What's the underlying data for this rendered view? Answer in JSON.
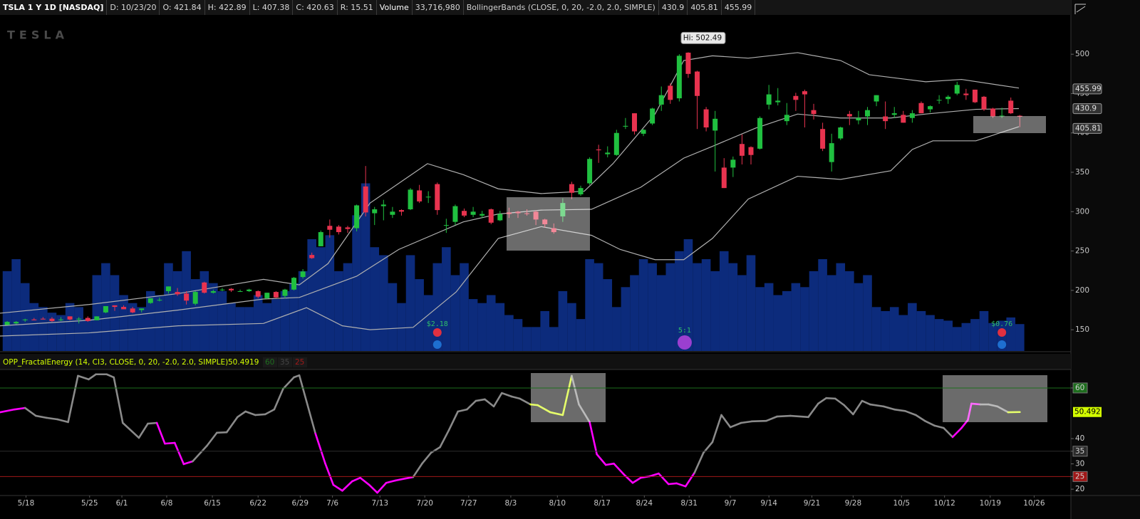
{
  "header": {
    "symbol": "TSLA 1 Y 1D [NASDAQ]",
    "fields": [
      "D: 10/23/20",
      "O: 421.84",
      "H: 422.89",
      "L: 407.38",
      "C: 420.63",
      "R: 15.51"
    ],
    "volume_label": "Volume",
    "volume": "33,716,980",
    "study": "BollingerBands (CLOSE, 0, 20, -2.0, 2.0, SIMPLE)",
    "study_values": [
      "430.9",
      "405.81",
      "455.99"
    ]
  },
  "logo": "TESLA",
  "price": {
    "type": "candlestick",
    "xlim": [
      -0.8,
      118.7
    ],
    "ylim": [
      123,
      549
    ],
    "yticks": [
      150,
      200,
      250,
      300,
      350,
      400,
      450,
      500
    ],
    "up_color": "#20c040",
    "down_color": "#e8334f",
    "volume_color": "#0c2b7c",
    "band_color": "#b0b0b0",
    "volume_lim": [
      0,
      420
    ],
    "candles": [
      [
        156,
        161,
        156,
        160
      ],
      [
        158,
        161,
        157,
        160
      ],
      [
        163,
        164,
        160,
        163
      ],
      [
        163,
        165,
        162,
        162
      ],
      [
        164,
        166,
        163,
        163
      ],
      [
        164,
        166,
        160,
        161
      ],
      [
        163,
        166,
        161,
        163
      ],
      [
        167,
        167,
        162,
        163
      ],
      [
        163,
        166,
        158,
        164
      ],
      [
        165,
        167,
        160,
        161
      ],
      [
        162,
        167,
        162,
        167
      ],
      [
        172,
        180,
        171,
        180
      ],
      [
        181,
        181,
        174,
        179
      ],
      [
        179,
        181,
        176,
        176
      ],
      [
        177,
        179,
        171,
        172
      ],
      [
        175,
        177,
        172,
        177
      ],
      [
        184,
        190,
        183,
        190
      ],
      [
        188,
        191,
        186,
        188
      ],
      [
        199,
        205,
        196,
        205
      ],
      [
        198,
        203,
        193,
        195
      ],
      [
        196,
        199,
        182,
        187
      ],
      [
        183,
        199,
        181,
        198
      ],
      [
        210,
        211,
        196,
        197
      ],
      [
        197,
        201,
        196,
        199
      ],
      [
        201,
        203,
        199,
        201
      ],
      [
        202,
        203,
        198,
        200
      ],
      [
        199,
        201,
        198,
        199
      ],
      [
        199,
        202,
        198,
        201
      ],
      [
        199,
        200,
        190,
        192
      ],
      [
        190,
        197,
        189,
        197
      ],
      [
        198,
        199,
        190,
        191
      ],
      [
        193,
        202,
        190,
        201
      ],
      [
        201,
        217,
        200,
        216
      ],
      [
        217,
        227,
        215,
        224
      ],
      [
        245,
        248,
        240,
        241
      ],
      [
        256,
        276,
        256,
        274
      ],
      [
        282,
        290,
        267,
        277
      ],
      [
        281,
        283,
        271,
        274
      ],
      [
        280,
        282,
        273,
        278
      ],
      [
        279,
        309,
        275,
        308
      ],
      [
        332,
        358,
        294,
        299
      ],
      [
        298,
        306,
        283,
        303
      ],
      [
        307,
        315,
        289,
        309
      ],
      [
        296,
        306,
        292,
        300
      ],
      [
        302,
        303,
        295,
        300
      ],
      [
        303,
        330,
        302,
        328
      ],
      [
        327,
        334,
        311,
        313
      ],
      [
        319,
        326,
        311,
        319
      ],
      [
        335,
        337,
        296,
        302
      ],
      [
        283,
        291,
        273,
        283
      ],
      [
        287,
        309,
        283,
        307
      ],
      [
        301,
        304,
        293,
        295
      ],
      [
        296,
        306,
        293,
        300
      ],
      [
        295,
        301,
        292,
        297
      ],
      [
        303,
        304,
        284,
        286
      ],
      [
        289,
        301,
        288,
        297
      ],
      [
        299,
        305,
        292,
        297
      ],
      [
        300,
        301,
        292,
        298
      ],
      [
        298,
        303,
        295,
        297
      ],
      [
        300,
        302,
        283,
        290
      ],
      [
        290,
        291,
        280,
        284
      ],
      [
        279,
        285,
        272,
        274
      ],
      [
        294,
        317,
        287,
        311
      ],
      [
        335,
        338,
        316,
        324
      ],
      [
        322,
        333,
        320,
        330
      ],
      [
        336,
        369,
        334,
        367
      ],
      [
        379,
        385,
        362,
        378
      ],
      [
        373,
        383,
        369,
        375
      ],
      [
        372,
        404,
        371,
        400
      ],
      [
        408,
        419,
        405,
        409
      ],
      [
        425,
        425,
        398,
        402
      ],
      [
        399,
        405,
        396,
        404
      ],
      [
        412,
        432,
        410,
        431
      ],
      [
        436,
        459,
        428,
        448
      ],
      [
        460,
        463,
        437,
        442
      ],
      [
        444,
        500,
        440,
        498
      ],
      [
        502,
        502.49,
        470,
        475
      ],
      [
        478,
        479,
        405,
        447
      ],
      [
        430,
        433,
        402,
        407
      ],
      [
        403,
        428,
        351,
        418
      ],
      [
        356,
        368,
        330,
        330
      ],
      [
        356,
        370,
        344,
        366
      ],
      [
        386,
        398,
        360,
        371
      ],
      [
        382,
        383,
        360,
        372
      ],
      [
        380,
        421,
        379,
        419
      ],
      [
        436,
        461,
        430,
        449
      ],
      [
        439,
        457,
        435,
        441
      ],
      [
        415,
        438,
        410,
        423
      ],
      [
        447,
        451,
        428,
        442
      ],
      [
        453,
        455,
        407,
        449
      ],
      [
        429,
        437,
        417,
        424
      ],
      [
        405,
        413,
        377,
        380
      ],
      [
        363,
        399,
        351,
        387
      ],
      [
        393,
        408,
        391,
        407
      ],
      [
        424,
        428,
        410,
        421
      ],
      [
        416,
        428,
        411,
        419
      ],
      [
        421,
        433,
        410,
        429
      ],
      [
        440,
        448,
        434,
        448
      ],
      [
        421,
        440,
        405,
        415
      ],
      [
        423,
        433,
        419,
        425
      ],
      [
        423,
        428,
        413,
        413
      ],
      [
        419,
        429,
        413,
        425
      ],
      [
        438,
        440,
        425,
        425
      ],
      [
        430,
        435,
        426,
        434
      ],
      [
        442,
        448,
        437,
        442
      ],
      [
        443,
        448,
        437,
        446
      ],
      [
        450,
        465,
        448,
        461
      ],
      [
        450,
        456,
        442,
        448
      ],
      [
        455,
        455,
        438,
        439
      ],
      [
        446,
        447,
        428,
        430
      ],
      [
        431,
        432,
        419,
        421
      ],
      [
        422,
        432,
        419,
        422
      ],
      [
        441,
        445,
        424,
        425
      ],
      [
        421.84,
        422.89,
        407.38,
        420.63
      ]
    ],
    "volume": [
      100,
      115,
      85,
      60,
      55,
      48,
      45,
      60,
      55,
      40,
      95,
      110,
      95,
      70,
      60,
      55,
      75,
      70,
      110,
      100,
      125,
      90,
      100,
      85,
      75,
      60,
      55,
      55,
      70,
      60,
      65,
      75,
      85,
      100,
      140,
      130,
      145,
      100,
      110,
      170,
      210,
      130,
      120,
      85,
      60,
      120,
      90,
      70,
      110,
      130,
      95,
      110,
      65,
      60,
      70,
      60,
      45,
      40,
      30,
      30,
      50,
      30,
      75,
      60,
      40,
      115,
      110,
      90,
      55,
      80,
      95,
      115,
      110,
      95,
      110,
      125,
      140,
      110,
      115,
      100,
      125,
      110,
      95,
      120,
      80,
      85,
      70,
      75,
      85,
      80,
      100,
      115,
      95,
      110,
      100,
      85,
      95,
      55,
      50,
      55,
      45,
      60,
      50,
      45,
      40,
      38,
      30,
      35,
      40,
      50,
      35,
      38,
      42,
      33.7
    ],
    "bollinger": {
      "upper": {
        "x": [
          -0.8,
          9.1,
          19.1,
          28.6,
          32.6,
          35.8,
          40.5,
          46.9,
          50.9,
          54.8,
          59.6,
          64.4,
          67.6,
          72.3,
          75.5,
          78.7,
          82.7,
          88.2,
          93,
          96.2,
          102.5,
          106.5,
          112.9
        ],
        "values": [
          171,
          182,
          196,
          214,
          207,
          234,
          311,
          361,
          347,
          329,
          323,
          326,
          361,
          424,
          492,
          498,
          495,
          502,
          492,
          474,
          465,
          468,
          457
        ]
      },
      "middle": {
        "x": [
          -0.8,
          9.1,
          19.1,
          28.6,
          32.6,
          39,
          43.7,
          50.9,
          54.8,
          59.6,
          65.2,
          70.7,
          75.5,
          78.7,
          83.5,
          88.2,
          93,
          98.6,
          102.5,
          108.1,
          112.9
        ],
        "values": [
          155,
          162,
          175,
          189,
          191,
          218,
          252,
          287,
          297,
          302,
          303,
          331,
          368,
          383,
          406,
          424,
          419,
          419,
          424,
          430,
          431
        ]
      },
      "lower": {
        "x": [
          -0.8,
          9.1,
          19.1,
          28.6,
          33.4,
          37.4,
          40.5,
          45.3,
          50.1,
          54.8,
          59.6,
          65.2,
          68.4,
          72.3,
          75.5,
          78.7,
          82.7,
          88.2,
          93,
          98.6,
          101,
          103.3,
          108.1,
          112.9
        ],
        "values": [
          142,
          146,
          155,
          158,
          178,
          155,
          150,
          153,
          198,
          266,
          281,
          270,
          252,
          239,
          239,
          266,
          316,
          345,
          341,
          352,
          379,
          390,
          390,
          408
        ]
      }
    },
    "axis_labels": [
      {
        "value": 455.99,
        "label": "455.99"
      },
      {
        "value": 430.9,
        "label": "430.9"
      },
      {
        "value": 405.81,
        "label": "405.81"
      }
    ],
    "hi_label": {
      "index": 76,
      "value": 502.49,
      "label": "Hi: 502.49"
    },
    "events": [
      {
        "index": 48,
        "label": "$2.18"
      },
      {
        "index": 75.6,
        "label": "5:1"
      },
      {
        "index": 111,
        "label": "$0.76"
      }
    ]
  },
  "indicator": {
    "type": "line",
    "title": "OPP_FractalEnergy (14, CI3, CLOSE, 0, 20, -2.0, 2.0, SIMPLE)",
    "current": {
      "value": 50.4919,
      "label": "50.492"
    },
    "levels": [
      {
        "value": 60,
        "color": "#1e6e1e"
      },
      {
        "value": 35,
        "color": "#2c2c2c"
      },
      {
        "value": 25,
        "color": "#a01818"
      }
    ],
    "ylim": [
      17.5,
      67.3
    ],
    "yticks": [
      60,
      40,
      35,
      30,
      25,
      20
    ],
    "color": "#8a8a8a",
    "color_runs": [
      [
        0,
        1,
        "#ff00ff"
      ],
      [
        15,
        18,
        "#ff00ff"
      ],
      [
        31,
        41,
        "#ff00ff"
      ],
      [
        55,
        58,
        "#d4ff00"
      ],
      [
        61,
        72,
        "#ff00ff"
      ],
      [
        98,
        101,
        "#ff00ff"
      ],
      [
        105,
        105,
        "#d4ff00"
      ]
    ],
    "x": [
      -0.8,
      0.8,
      2.0,
      3.2,
      4.4,
      5.6,
      6.8,
      7.9,
      9.1,
      9.9,
      11.1,
      11.9,
      12.9,
      14.7,
      15.7,
      16.7,
      17.6,
      18.7,
      19.7,
      20.7,
      22.3,
      23.4,
      24.5,
      25.7,
      26.6,
      27.7,
      28.8,
      29.8,
      30.8,
      32.0,
      32.6,
      34.4,
      35.5,
      36.4,
      37.4,
      38.5,
      39.4,
      40.4,
      41.3,
      42.3,
      43.3,
      44.4,
      45.3,
      46.3,
      47.3,
      48.3,
      49.3,
      50.3,
      51.3,
      52.3,
      53.3,
      54.3,
      55.2,
      56.3,
      57.2,
      58.4,
      59.2,
      60.6,
      62.0,
      63.0,
      63.8,
      65.0,
      65.8,
      66.8,
      67.7,
      68.8,
      69.8,
      70.7,
      71.7,
      72.7,
      73.8,
      74.7,
      75.7,
      76.7,
      77.7,
      78.7,
      79.7,
      80.7,
      81.9,
      83.1,
      84.7,
      85.9,
      87.4,
      89.4,
      90.5,
      91.4,
      92.4,
      93.4,
      94.4,
      95.4,
      96.3,
      97.8,
      99.0,
      100.2,
      101.4,
      102.4,
      103.5,
      104.5,
      105.5,
      106.5,
      107.2,
      107.6,
      108.6,
      109.5,
      110.5,
      111.7,
      113.0
    ],
    "values": [
      50.4,
      51.5,
      52.1,
      49,
      48.2,
      47.6,
      46.5,
      64.8,
      63.4,
      65.4,
      65.4,
      64.2,
      46.2,
      40.3,
      45.9,
      46.2,
      38,
      38.3,
      29.9,
      31,
      37.2,
      42.3,
      42.5,
      48.5,
      50.7,
      49.3,
      49.6,
      51.5,
      59.7,
      64.2,
      65,
      42,
      30.1,
      21.7,
      19.4,
      23.1,
      24.5,
      21.7,
      18.6,
      22.5,
      23.4,
      24.2,
      24.8,
      30.1,
      34.4,
      36.6,
      43.4,
      50.7,
      51.5,
      54.9,
      55.5,
      52.7,
      58,
      56.6,
      55.8,
      53.5,
      53.2,
      50.4,
      49.3,
      64.8,
      53.5,
      46.5,
      33.8,
      29.6,
      30.1,
      25.9,
      22.5,
      24.5,
      25.1,
      26.2,
      22,
      22.3,
      21.1,
      26.5,
      34.4,
      38.6,
      49.3,
      44.5,
      46.2,
      46.8,
      47,
      48.7,
      49,
      48.5,
      53.8,
      56,
      55.8,
      53.2,
      49.6,
      54.9,
      53.5,
      52.7,
      51.5,
      50.9,
      49.3,
      47,
      45.1,
      44.2,
      40.6,
      44.2,
      47.3,
      53.8,
      53.5,
      53.5,
      52.7,
      50.4,
      50.49
    ]
  },
  "xticks": [
    {
      "value": 2.1,
      "label": "5/18"
    },
    {
      "value": 9.2,
      "label": "5/25"
    },
    {
      "value": 12.8,
      "label": "6/1"
    },
    {
      "value": 17.8,
      "label": "6/8"
    },
    {
      "value": 22.9,
      "label": "6/15"
    },
    {
      "value": 28,
      "label": "6/22"
    },
    {
      "value": 32.7,
      "label": "6/29"
    },
    {
      "value": 36.3,
      "label": "7/6"
    },
    {
      "value": 41.6,
      "label": "7/13"
    },
    {
      "value": 46.6,
      "label": "7/20"
    },
    {
      "value": 51.5,
      "label": "7/27"
    },
    {
      "value": 56.2,
      "label": "8/3"
    },
    {
      "value": 61.4,
      "label": "8/10"
    },
    {
      "value": 66.4,
      "label": "8/17"
    },
    {
      "value": 71.1,
      "label": "8/24"
    },
    {
      "value": 76.1,
      "label": "8/31"
    },
    {
      "value": 80.7,
      "label": "9/7"
    },
    {
      "value": 85,
      "label": "9/14"
    },
    {
      "value": 89.8,
      "label": "9/21"
    },
    {
      "value": 94.4,
      "label": "9/28"
    },
    {
      "value": 99.8,
      "label": "10/5"
    },
    {
      "value": 104.6,
      "label": "10/12"
    },
    {
      "value": 109.7,
      "label": "10/19"
    },
    {
      "value": 114.6,
      "label": "10/26"
    }
  ]
}
